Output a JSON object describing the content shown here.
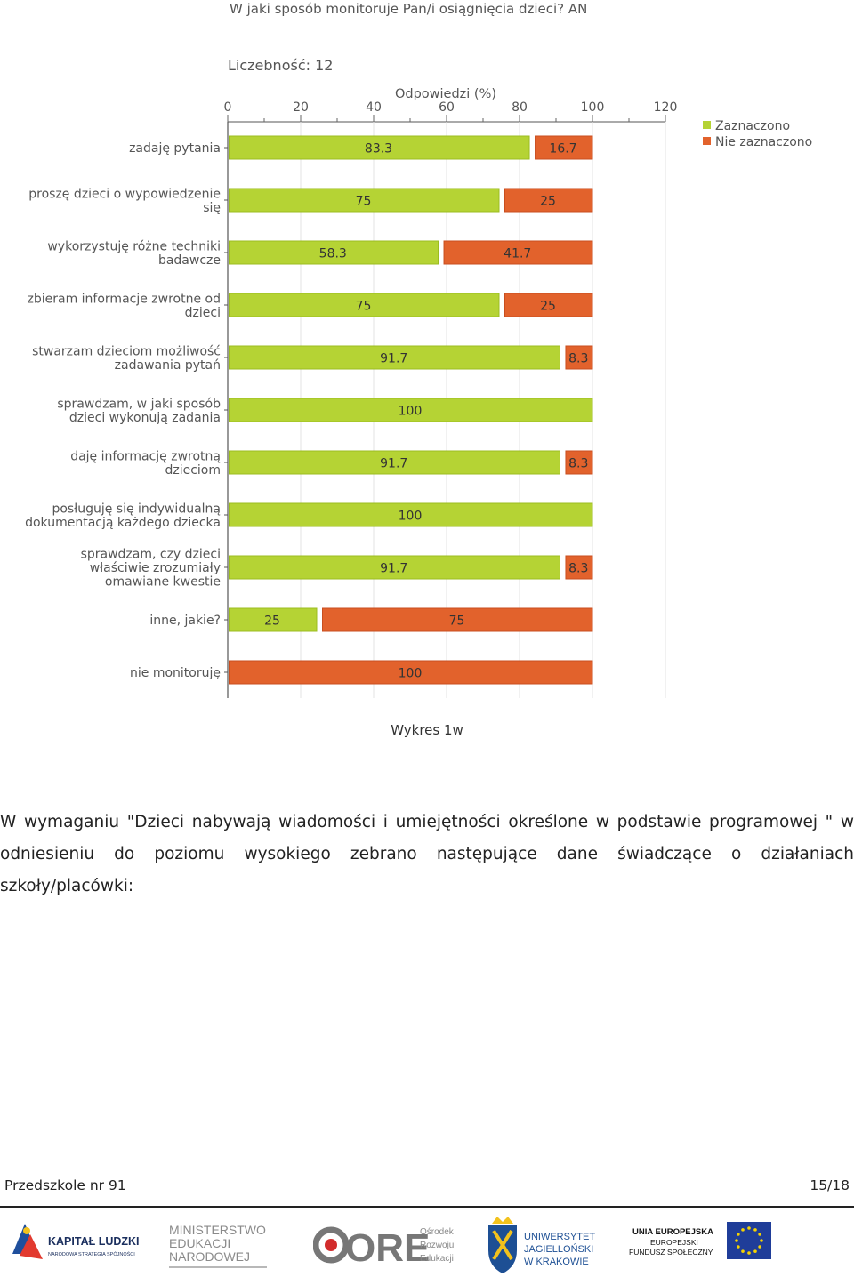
{
  "chart_data": {
    "type": "bar",
    "orientation": "horizontal",
    "stacked": true,
    "title": "W jaki sposób monitoruje Pan/i osiągnięcia dzieci?  AN",
    "sample_label": "Liczebność: 12",
    "xlabel": "Odpowiedzi (%)",
    "xlim": [
      0,
      120
    ],
    "xticks": [
      0,
      20,
      40,
      60,
      80,
      100,
      120
    ],
    "xtick_labels": [
      "0",
      "20",
      "40",
      "60",
      "80",
      "100",
      "120"
    ],
    "grid": true,
    "legend_position": "top-right",
    "categories": [
      [
        "zadaję pytania"
      ],
      [
        "proszę dzieci o wypowiedzenie",
        "się"
      ],
      [
        "wykorzystuję różne techniki",
        "badawcze"
      ],
      [
        "zbieram informacje zwrotne od",
        "dzieci"
      ],
      [
        "stwarzam dzieciom możliwość",
        "zadawania pytań"
      ],
      [
        "sprawdzam, w jaki sposób",
        "dzieci wykonują zadania"
      ],
      [
        "daję informację zwrotną",
        "dzieciom"
      ],
      [
        "posługuję się indywidualną",
        "dokumentacją każdego dziecka"
      ],
      [
        "sprawdzam, czy dzieci",
        "właściwie zrozumiały",
        "omawiane kwestie"
      ],
      [
        "inne, jakie?"
      ],
      [
        "nie monitoruję"
      ]
    ],
    "series": [
      {
        "name": "Zaznaczono",
        "color": "#b5d334",
        "values": [
          83.3,
          75,
          58.3,
          75,
          91.7,
          100,
          91.7,
          100,
          91.7,
          25,
          0
        ],
        "labels": [
          "83.3",
          "75",
          "58.3",
          "75",
          "91.7",
          "100",
          "91.7",
          "100",
          "91.7",
          "25",
          ""
        ]
      },
      {
        "name": "Nie zaznaczono",
        "color": "#e2622c",
        "values": [
          16.7,
          25,
          41.7,
          25,
          8.3,
          0,
          8.3,
          0,
          8.3,
          75,
          100
        ],
        "labels": [
          "16.7",
          "25",
          "41.7",
          "25",
          "8.3",
          "",
          "8.3",
          "",
          "8.3",
          "75",
          "100"
        ]
      }
    ]
  },
  "caption": "Wykres 1w",
  "paragraph": "W wymaganiu \"Dzieci nabywają wiadomości i umiejętności określone w podstawie programowej \" w odniesieniu do poziomu wysokiego zebrano następujące dane świadczące o działaniach szkoły/placówki:",
  "footer": {
    "left": "Przedszkole nr 91",
    "right": "15/18"
  },
  "logos": {
    "kapital": {
      "title": "KAPITAŁ LUDZKI",
      "sub": "NARODOWA STRATEGIA SPÓJNOŚCI"
    },
    "men": {
      "lines": [
        "MINISTERSTWO",
        "EDUKACJI",
        "NARODOWEJ"
      ]
    },
    "ore": {
      "mark": "ORE",
      "lines": [
        "Ośrodek",
        "Rozwoju",
        "Edukacji"
      ]
    },
    "uj": {
      "lines": [
        "UNIWERSYTET",
        "JAGIELLOŃSKI",
        "W KRAKOWIE"
      ]
    },
    "ue": {
      "lines": [
        "UNIA EUROPEJSKA",
        "EUROPEJSKI",
        "FUNDUSZ SPOŁECZNY"
      ]
    }
  }
}
